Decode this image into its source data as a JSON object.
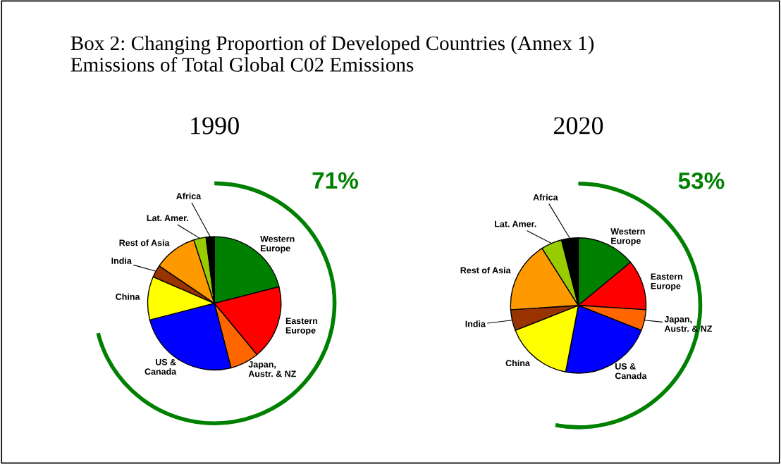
{
  "chart_data": [
    {
      "type": "pie",
      "title": "1990",
      "categories": [
        "Western\nEurope",
        "Eastern\nEurope",
        "Japan,\nAustr. & NZ",
        "US &\nCanada",
        "China",
        "India",
        "Rest of Asia",
        "Lat. Amer.",
        "Africa"
      ],
      "values": [
        21,
        18,
        7,
        25,
        10.5,
        3,
        10.5,
        3,
        2
      ],
      "colors": [
        "#008000",
        "#ff0000",
        "#ff6600",
        "#0000ff",
        "#ffff00",
        "#993300",
        "#ff9900",
        "#99cc00",
        "#000000"
      ],
      "annotations": [
        "Box 2: Changing Proportion of Developed Countries (Annex 1)\nEmissions of Total Global C02 Emissions",
        "71%"
      ]
    },
    {
      "type": "pie",
      "title": "2020",
      "categories": [
        "Western\nEurope",
        "Eastern\nEurope",
        "Japan,\nAustr. & NZ",
        "US &\nCanada",
        "China",
        "India",
        "Rest of Asia",
        "Lat. Amer.",
        "Africa"
      ],
      "values": [
        14,
        12,
        5,
        22,
        16,
        5,
        17,
        5,
        4
      ],
      "colors": [
        "#008000",
        "#ff0000",
        "#ff6600",
        "#0000ff",
        "#ffff00",
        "#993300",
        "#ff9900",
        "#99cc00",
        "#000000"
      ],
      "annotations": [
        "53%"
      ]
    }
  ]
}
